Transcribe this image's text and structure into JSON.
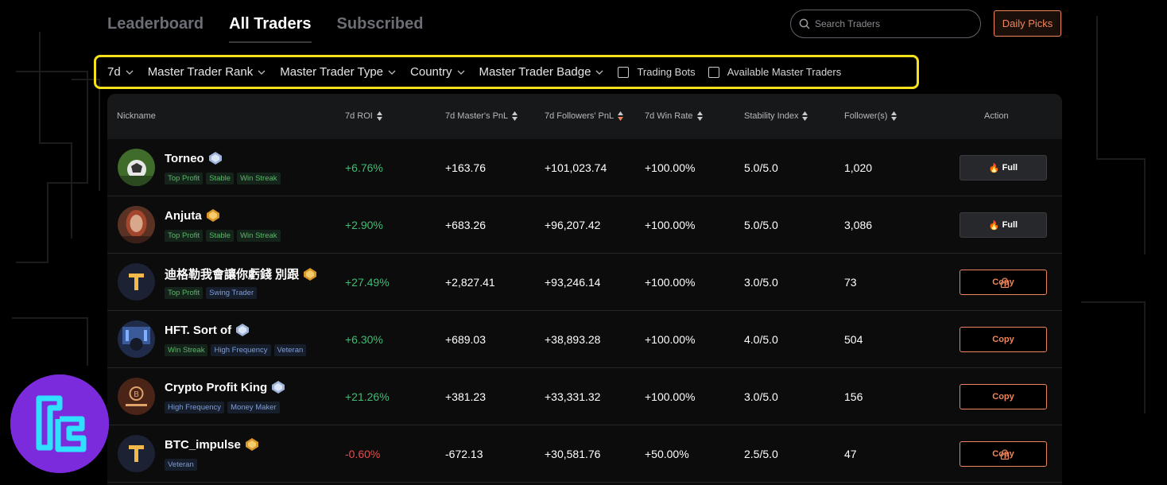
{
  "nav": {
    "tabs": [
      "Leaderboard",
      "All Traders",
      "Subscribed"
    ],
    "active_tab": "All Traders",
    "search_placeholder": "Search Traders",
    "daily_picks": "Daily Picks"
  },
  "filters": {
    "period": "7d",
    "rank": "Master Trader Rank",
    "type": "Master Trader Type",
    "country": "Country",
    "badge": "Master Trader Badge",
    "trading_bots": "Trading Bots",
    "available": "Available Master Traders"
  },
  "table": {
    "headers": {
      "nickname": "Nickname",
      "roi": "7d ROI",
      "master_pnl": "7d Master's PnL",
      "followers_pnl": "7d Followers' PnL",
      "win_rate": "7d Win Rate",
      "stability": "Stability Index",
      "followers": "Follower(s)",
      "action": "Action"
    },
    "rows": [
      {
        "name": "Torneo",
        "tags": [
          "Top Profit",
          "Stable",
          "Win Streak"
        ],
        "roi": "+6.76%",
        "master_pnl": "+163.76",
        "followers_pnl": "+101,023.74",
        "win_rate": "+100.00%",
        "stability": "5.0/5.0",
        "followers": "1,020",
        "action": "Full"
      },
      {
        "name": "Anjuta",
        "tags": [
          "Top Profit",
          "Stable",
          "Win Streak"
        ],
        "roi": "+2.90%",
        "master_pnl": "+683.26",
        "followers_pnl": "+96,207.42",
        "win_rate": "+100.00%",
        "stability": "5.0/5.0",
        "followers": "3,086",
        "action": "Full"
      },
      {
        "name": "迪格勒我會讓你虧錢 別跟",
        "tags": [
          "Top Profit",
          "Swing Trader"
        ],
        "roi": "+27.49%",
        "master_pnl": "+2,827.41",
        "followers_pnl": "+93,246.14",
        "win_rate": "+100.00%",
        "stability": "3.0/5.0",
        "followers": "73",
        "action": "Copy"
      },
      {
        "name": "HFT. Sort of",
        "tags": [
          "Win Streak",
          "High Frequency",
          "Veteran"
        ],
        "roi": "+6.30%",
        "master_pnl": "+689.03",
        "followers_pnl": "+38,893.28",
        "win_rate": "+100.00%",
        "stability": "4.0/5.0",
        "followers": "504",
        "action": "Copy"
      },
      {
        "name": "Crypto Profit King",
        "tags": [
          "High Frequency",
          "Money Maker"
        ],
        "roi": "+21.26%",
        "master_pnl": "+381.23",
        "followers_pnl": "+33,331.32",
        "win_rate": "+100.00%",
        "stability": "3.0/5.0",
        "followers": "156",
        "action": "Copy"
      },
      {
        "name": "BTC_impulse",
        "tags": [
          "Veteran"
        ],
        "roi": "-0.60%",
        "master_pnl": "-672.13",
        "followers_pnl": "+30,581.76",
        "win_rate": "+50.00%",
        "stability": "2.5/5.0",
        "followers": "47",
        "action": "Copy"
      }
    ]
  },
  "colors": {
    "accent": "#f0845a",
    "positive": "#3ebd73",
    "negative": "#e94b4b",
    "highlight": "#f5e21a",
    "logo": "#7c2bdc"
  }
}
